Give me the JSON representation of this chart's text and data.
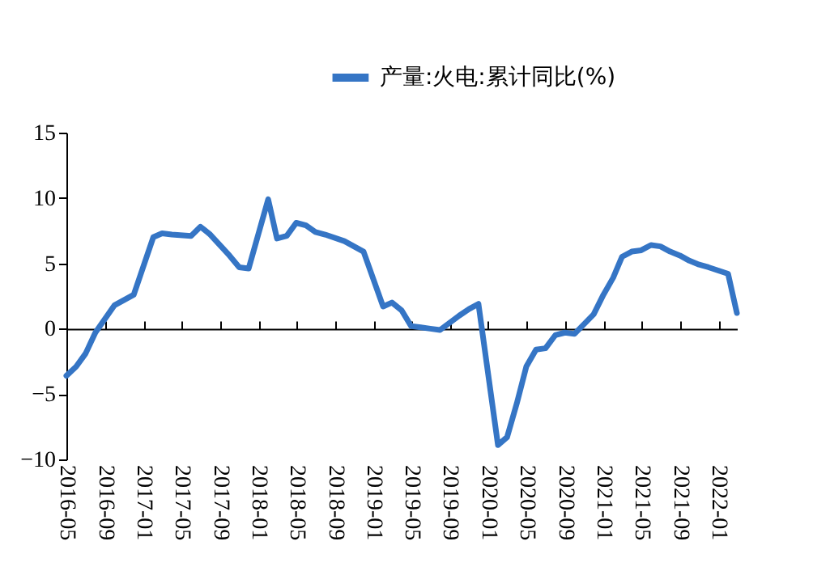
{
  "chart_data": {
    "type": "line",
    "x": [
      "2016-05",
      "2016-06",
      "2016-07",
      "2016-08",
      "2016-10",
      "2016-12",
      "2017-02",
      "2017-03",
      "2017-04",
      "2017-06",
      "2017-07",
      "2017-08",
      "2017-10",
      "2017-11",
      "2017-12",
      "2018-02",
      "2018-03",
      "2018-04",
      "2018-05",
      "2018-06",
      "2018-07",
      "2018-08",
      "2018-10",
      "2018-12",
      "2019-02",
      "2019-03",
      "2019-04",
      "2019-05",
      "2019-06",
      "2019-07",
      "2019-08",
      "2019-10",
      "2019-11",
      "2019-12",
      "2020-02",
      "2020-03",
      "2020-04",
      "2020-05",
      "2020-06",
      "2020-07",
      "2020-08",
      "2020-09",
      "2020-10",
      "2020-12",
      "2021-01",
      "2021-02",
      "2021-03",
      "2021-04",
      "2021-05",
      "2021-06",
      "2021-07",
      "2021-08",
      "2021-09",
      "2021-10",
      "2021-11",
      "2021-12",
      "2022-02",
      "2022-03"
    ],
    "series": [
      {
        "name": "产量:火电:累计同比(%)",
        "color": "#3575c5",
        "values": [
          -3.6,
          -2.9,
          -1.9,
          -0.3,
          1.8,
          2.6,
          7.0,
          7.3,
          7.2,
          7.1,
          7.8,
          7.2,
          5.6,
          4.7,
          4.6,
          9.9,
          6.9,
          7.1,
          8.1,
          7.9,
          7.4,
          7.2,
          6.7,
          5.9,
          1.7,
          2.0,
          1.4,
          0.2,
          0.1,
          0.0,
          -0.1,
          1.0,
          1.5,
          1.9,
          -8.9,
          -8.3,
          -5.7,
          -2.9,
          -1.6,
          -1.5,
          -0.5,
          -0.3,
          -0.4,
          1.1,
          2.6,
          3.9,
          5.5,
          5.9,
          6.0,
          6.4,
          6.3,
          5.9,
          5.6,
          5.2,
          4.9,
          4.7,
          4.2,
          1.2
        ]
      }
    ],
    "xlim": [
      "2016-05",
      "2022-03"
    ],
    "xticks": [
      "2016-05",
      "2016-09",
      "2017-01",
      "2017-05",
      "2017-09",
      "2018-01",
      "2018-05",
      "2018-09",
      "2019-01",
      "2019-05",
      "2019-09",
      "2020-01",
      "2020-05",
      "2020-09",
      "2021-01",
      "2021-05",
      "2021-09",
      "2022-01"
    ],
    "ylim": [
      -10,
      15
    ],
    "yticks": [
      -10,
      -5,
      0,
      5,
      10,
      15
    ],
    "legend": "top",
    "marker": "none",
    "line_style": "solid"
  }
}
